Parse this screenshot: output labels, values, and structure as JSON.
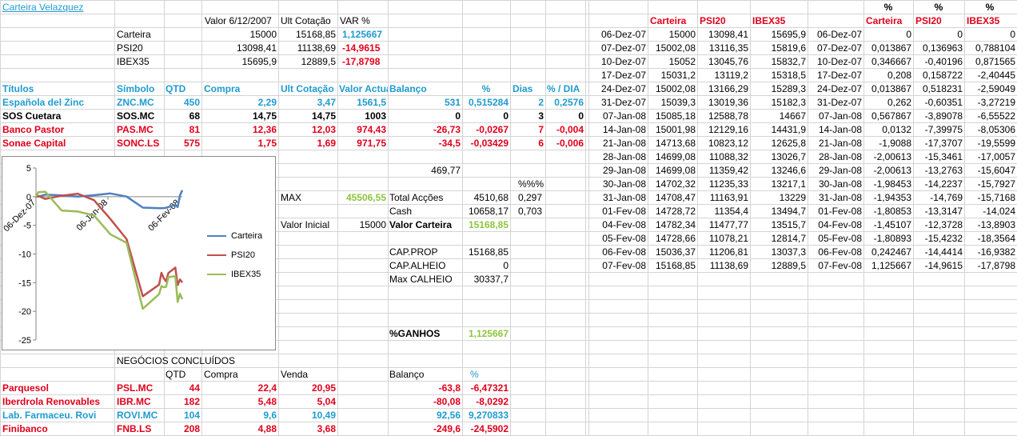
{
  "title": "Carteira Velazquez",
  "summary": {
    "headers": [
      "Valor 6/12/2007",
      "Ult Cotação",
      "VAR %"
    ],
    "rows": [
      {
        "name": "Carteira",
        "valor": "15000",
        "ult": "15168,85",
        "var": "1,125667",
        "var_color": "#1f9bd0"
      },
      {
        "name": "PSI20",
        "valor": "13098,41",
        "ult": "11138,69",
        "var": "-14,9615",
        "var_color": "#e0001b"
      },
      {
        "name": "IBEX35",
        "valor": "15695,9",
        "ult": "12889,5",
        "var": "-17,8798",
        "var_color": "#e0001b"
      }
    ]
  },
  "positions": {
    "headers": [
      "Títulos",
      "Símbolo",
      "QTD",
      "Compra",
      "Ult Cotação",
      "Valor Actual",
      "Balanço",
      "%",
      "Dias",
      "% / DIA"
    ],
    "rows": [
      {
        "titulo": "Española del Zinc",
        "simbolo": "ZNC.MC",
        "qtd": "450",
        "compra": "2,29",
        "ult": "3,47",
        "valor": "1561,5",
        "balanco": "531",
        "pct": "0,515284",
        "dias": "2",
        "pdia": "0,2576",
        "color": "#1f9bd0"
      },
      {
        "titulo": "SOS Cuetara",
        "simbolo": "SOS.MC",
        "qtd": "68",
        "compra": "14,75",
        "ult": "14,75",
        "valor": "1003",
        "balanco": "0",
        "pct": "0",
        "dias": "3",
        "pdia": "0",
        "color": "#000000"
      },
      {
        "titulo": "Banco Pastor",
        "simbolo": "PAS.MC",
        "qtd": "81",
        "compra": "12,36",
        "ult": "12,03",
        "valor": "974,43",
        "balanco": "-26,73",
        "pct": "-0,0267",
        "dias": "7",
        "pdia": "-0,004",
        "color": "#e0001b"
      },
      {
        "titulo": "Sonae Capital",
        "simbolo": "SONC.LS",
        "qtd": "575",
        "compra": "1,75",
        "ult": "1,69",
        "valor": "971,75",
        "balanco": "-34,5",
        "pct": "-0,03429",
        "dias": "6",
        "pdia": "-0,006",
        "color": "#e0001b"
      }
    ]
  },
  "totals": {
    "sum_value": "469,77",
    "pct_label": "%%%",
    "max_label": "MAX",
    "max_value": "45506,55",
    "total_accoes_label": "Total Acções",
    "total_accoes_value": "4510,68",
    "total_accoes_pct": "0,297",
    "cash_label": "Cash",
    "cash_value": "10658,17",
    "cash_pct": "0,703",
    "valor_inicial_label": "Valor Inicial",
    "valor_inicial_value": "15000",
    "valor_carteira_label": "Valor Carteira",
    "valor_carteira_value": "15168,85",
    "cap_prop_label": "CAP.PROP",
    "cap_prop_value": "15168,85",
    "cap_alheio_label": "CAP.ALHEIO",
    "cap_alheio_value": "0",
    "max_calheio_label": "Max CALHEIO",
    "max_calheio_value": "30337,7",
    "ganhos_label": "%GANHOS",
    "ganhos_value": "1,125667"
  },
  "closed": {
    "title": "NEGÓCIOS CONCLUÍDOS",
    "headers": [
      "QTD",
      "Compra",
      "Venda",
      "Balanço",
      "%"
    ],
    "rows": [
      {
        "titulo": "Parquesol",
        "simbolo": "PSL.MC",
        "qtd": "44",
        "compra": "22,4",
        "venda": "20,95",
        "balanco": "-63,8",
        "pct": "-6,47321",
        "color": "#e0001b"
      },
      {
        "titulo": "Iberdrola Renovables",
        "simbolo": "IBR.MC",
        "qtd": "182",
        "compra": "5,48",
        "venda": "5,04",
        "balanco": "-80,08",
        "pct": "-8,0292",
        "color": "#e0001b"
      },
      {
        "titulo": "Lab. Farmaceu. Rovi",
        "simbolo": "ROVI.MC",
        "qtd": "104",
        "compra": "9,6",
        "venda": "10,49",
        "balanco": "92,56",
        "pct": "9,270833",
        "color": "#1f9bd0"
      },
      {
        "titulo": "Finibanco",
        "simbolo": "FNB.LS",
        "qtd": "208",
        "compra": "4,88",
        "venda": "3,68",
        "balanco": "-249,6",
        "pct": "-24,5902",
        "color": "#e0001b"
      }
    ]
  },
  "history": {
    "headers": [
      "Carteira",
      "PSI20",
      "IBEX35"
    ],
    "pct_headers": [
      "%",
      "%",
      "%"
    ],
    "pct_headers2": [
      "Carteira",
      "PSI20",
      "IBEX35"
    ],
    "rows": [
      {
        "date": "06-Dez-07",
        "carteira": "15000",
        "psi20": "13098,41",
        "ibex": "15695,9",
        "date2": "06-Dez-07",
        "pc": "0",
        "pp": "0",
        "pi": "0"
      },
      {
        "date": "07-Dez-07",
        "carteira": "15002,08",
        "psi20": "13116,35",
        "ibex": "15819,6",
        "date2": "07-Dez-07",
        "pc": "0,013867",
        "pp": "0,136963",
        "pi": "0,788104"
      },
      {
        "date": "10-Dez-07",
        "carteira": "15052",
        "psi20": "13045,76",
        "ibex": "15832,7",
        "date2": "10-Dez-07",
        "pc": "0,346667",
        "pp": "-0,40196",
        "pi": "0,871565"
      },
      {
        "date": "17-Dez-07",
        "carteira": "15031,2",
        "psi20": "13119,2",
        "ibex": "15318,5",
        "date2": "17-Dez-07",
        "pc": "0,208",
        "pp": "0,158722",
        "pi": "-2,40445"
      },
      {
        "date": "24-Dez-07",
        "carteira": "15002,08",
        "psi20": "13166,29",
        "ibex": "15289,3",
        "date2": "24-Dez-07",
        "pc": "0,013867",
        "pp": "0,518231",
        "pi": "-2,59049"
      },
      {
        "date": "31-Dez-07",
        "carteira": "15039,3",
        "psi20": "13019,36",
        "ibex": "15182,3",
        "date2": "31-Dez-07",
        "pc": "0,262",
        "pp": "-0,60351",
        "pi": "-3,27219"
      },
      {
        "date": "07-Jan-08",
        "carteira": "15085,18",
        "psi20": "12588,78",
        "ibex": "14667",
        "date2": "07-Jan-08",
        "pc": "0,567867",
        "pp": "-3,89078",
        "pi": "-6,55522"
      },
      {
        "date": "14-Jan-08",
        "carteira": "15001,98",
        "psi20": "12129,16",
        "ibex": "14431,9",
        "date2": "14-Jan-08",
        "pc": "0,0132",
        "pp": "-7,39975",
        "pi": "-8,05306"
      },
      {
        "date": "21-Jan-08",
        "carteira": "14713,68",
        "psi20": "10823,12",
        "ibex": "12625,8",
        "date2": "21-Jan-08",
        "pc": "-1,9088",
        "pp": "-17,3707",
        "pi": "-19,5599"
      },
      {
        "date": "28-Jan-08",
        "carteira": "14699,08",
        "psi20": "11088,32",
        "ibex": "13026,7",
        "date2": "28-Jan-08",
        "pc": "-2,00613",
        "pp": "-15,3461",
        "pi": "-17,0057"
      },
      {
        "date": "29-Jan-08",
        "carteira": "14699,08",
        "psi20": "11359,42",
        "ibex": "13246,6",
        "date2": "29-Jan-08",
        "pc": "-2,00613",
        "pp": "-13,2763",
        "pi": "-15,6047"
      },
      {
        "date": "30-Jan-08",
        "carteira": "14702,32",
        "psi20": "11235,33",
        "ibex": "13217,1",
        "date2": "30-Jan-08",
        "pc": "-1,98453",
        "pp": "-14,2237",
        "pi": "-15,7927"
      },
      {
        "date": "31-Jan-08",
        "carteira": "14708,47",
        "psi20": "11163,91",
        "ibex": "13229",
        "date2": "31-Jan-08",
        "pc": "-1,94353",
        "pp": "-14,769",
        "pi": "-15,7168"
      },
      {
        "date": "01-Fev-08",
        "carteira": "14728,72",
        "psi20": "11354,4",
        "ibex": "13494,7",
        "date2": "01-Fev-08",
        "pc": "-1,80853",
        "pp": "-13,3147",
        "pi": "-14,024"
      },
      {
        "date": "04-Fev-08",
        "carteira": "14782,34",
        "psi20": "11477,77",
        "ibex": "13515,7",
        "date2": "04-Fev-08",
        "pc": "-1,45107",
        "pp": "-12,3728",
        "pi": "-13,8903"
      },
      {
        "date": "05-Fev-08",
        "carteira": "14728,66",
        "psi20": "11078,21",
        "ibex": "12814,7",
        "date2": "05-Fev-08",
        "pc": "-1,80893",
        "pp": "-15,4232",
        "pi": "-18,3564"
      },
      {
        "date": "06-Fev-08",
        "carteira": "15036,37",
        "psi20": "11206,81",
        "ibex": "13037,3",
        "date2": "06-Fev-08",
        "pc": "0,242467",
        "pp": "-14,4414",
        "pi": "-16,9382"
      },
      {
        "date": "07-Fev-08",
        "carteira": "15168,85",
        "psi20": "11138,69",
        "ibex": "12889,5",
        "date2": "07-Fev-08",
        "pc": "1,125667",
        "pp": "-14,9615",
        "pi": "-17,8798"
      }
    ]
  },
  "chart_data": {
    "type": "line",
    "x": [
      "2007-12-06",
      "2007-12-07",
      "2007-12-10",
      "2007-12-17",
      "2007-12-24",
      "2007-12-31",
      "2008-01-07",
      "2008-01-14",
      "2008-01-21",
      "2008-01-28",
      "2008-01-29",
      "2008-01-30",
      "2008-01-31",
      "2008-02-01",
      "2008-02-04",
      "2008-02-05",
      "2008-02-06",
      "2008-02-07"
    ],
    "x_tick_labels": [
      "06-Dez-07",
      "06-Jan-08",
      "06-Fev-08"
    ],
    "x_ticks": [
      "2007-12-06",
      "2008-01-06",
      "2008-02-06"
    ],
    "series": [
      {
        "name": "Carteira",
        "color": "#4f81bd",
        "values": [
          0,
          0.013867,
          0.346667,
          0.208,
          0.013867,
          0.262,
          0.567867,
          0.0132,
          -1.9088,
          -2.00613,
          -2.00613,
          -1.98453,
          -1.94353,
          -1.80853,
          -1.45107,
          -1.80893,
          0.242467,
          1.125667
        ]
      },
      {
        "name": "PSI20",
        "color": "#c0504d",
        "values": [
          0,
          0.136963,
          -0.40196,
          0.158722,
          0.518231,
          -0.60351,
          -3.89078,
          -7.39975,
          -17.3707,
          -15.3461,
          -13.2763,
          -14.2237,
          -14.769,
          -13.3147,
          -12.3728,
          -15.4232,
          -14.4414,
          -14.9615
        ]
      },
      {
        "name": "IBEX35",
        "color": "#9bbb59",
        "values": [
          0,
          0.788104,
          0.871565,
          -2.40445,
          -2.59049,
          -3.27219,
          -6.55522,
          -8.05306,
          -19.5599,
          -17.0057,
          -15.6047,
          -15.7927,
          -15.7168,
          -14.024,
          -13.8903,
          -18.3564,
          -16.9382,
          -17.8798
        ]
      }
    ],
    "ylim": [
      -25,
      5
    ],
    "yticks": [
      5,
      0,
      -5,
      -10,
      -15,
      -20,
      -25
    ],
    "legend": "right",
    "grid": false
  }
}
